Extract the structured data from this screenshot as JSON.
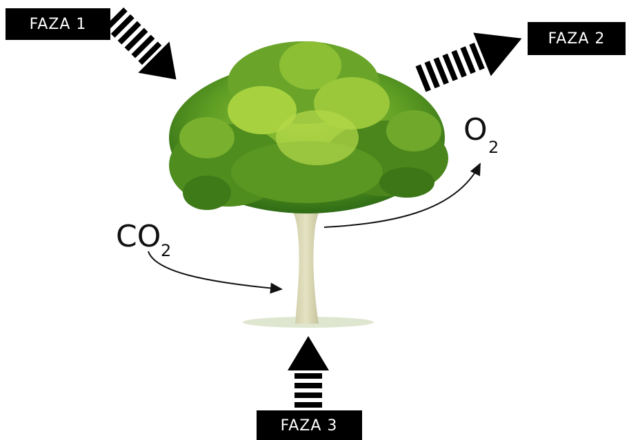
{
  "nodes": [
    {
      "label": "FAZA 1"
    },
    {
      "label": "FAZA 2"
    },
    {
      "label": "FAZA 3"
    },
    {
      "label": "CO",
      "subscript": "2"
    },
    {
      "label": "O",
      "subscript": "2"
    }
  ]
}
